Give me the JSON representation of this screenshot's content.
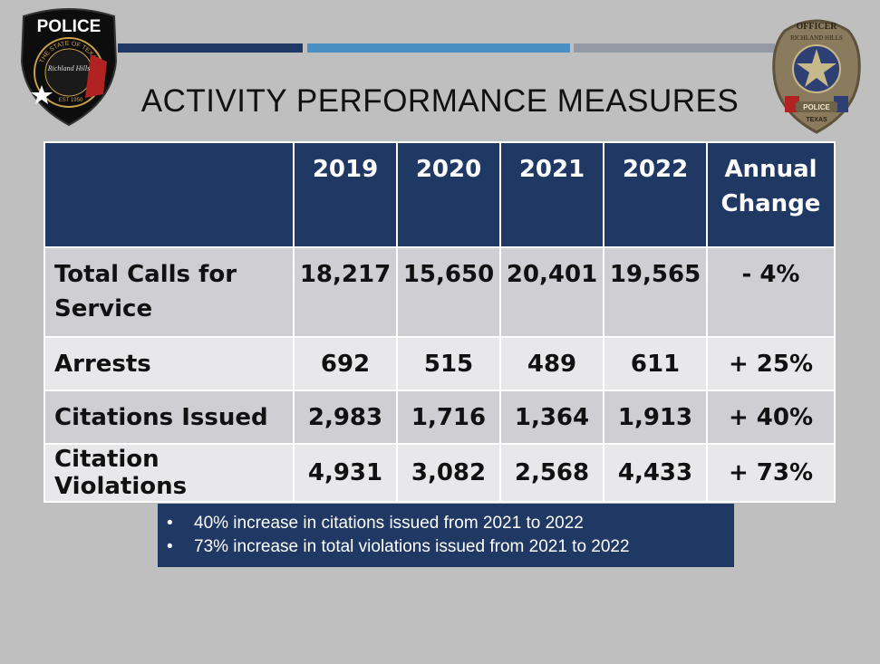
{
  "header": {
    "title": "ACTIVITY PERFORMANCE MEASURES",
    "bar_colors": [
      "#1f3864",
      "#4a8fc4",
      "#939aa3"
    ]
  },
  "patch": {
    "top_text": "POLICE",
    "ring_text": "THE STATE OF TEXAS",
    "city": "Richland Hills",
    "est": "EST 1950"
  },
  "badge": {
    "top_text": "OFFICER",
    "city": "RICHLAND HILLS",
    "ribbon": "POLICE",
    "state": "TEXAS"
  },
  "table": {
    "headers": [
      "",
      "2019",
      "2020",
      "2021",
      "2022",
      "Annual Change"
    ],
    "rows": [
      {
        "label": "Total Calls for Service",
        "values": [
          "18,217",
          "15,650",
          "20,401",
          "19,565",
          "- 4%"
        ]
      },
      {
        "label": "Arrests",
        "values": [
          "692",
          "515",
          "489",
          "611",
          "+ 25%"
        ]
      },
      {
        "label": "Citations Issued",
        "values": [
          "2,983",
          "1,716",
          "1,364",
          "1,913",
          "+ 40%"
        ]
      },
      {
        "label": "Citation Violations",
        "values": [
          "4,931",
          "3,082",
          "2,568",
          "4,433",
          "+ 73%"
        ]
      }
    ]
  },
  "notes": [
    "40% increase in citations issued from 2021 to 2022",
    "73% increase in total violations issued from 2021 to 2022"
  ],
  "colors": {
    "background": "#bfbfbf",
    "header_fill": "#1f3864",
    "row_dark": "#cfcfd3",
    "row_light": "#e8e8ea"
  }
}
